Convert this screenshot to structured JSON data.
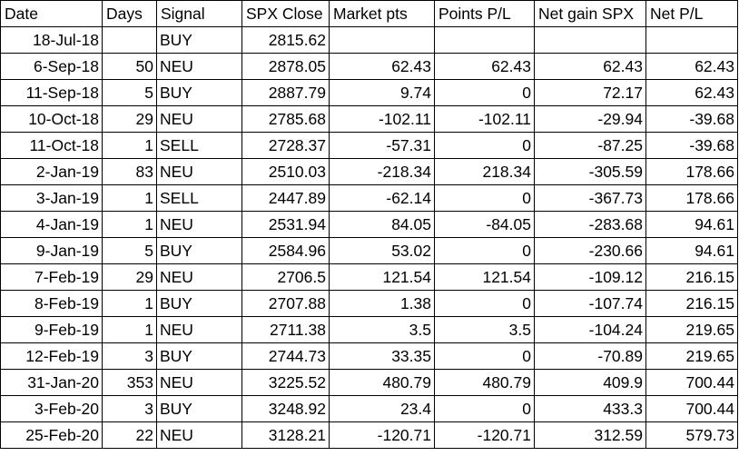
{
  "columns": [
    "Date",
    "Days",
    "Signal",
    "SPX Close",
    "Market pts",
    "Points P/L",
    "Net gain SPX",
    "Net P/L"
  ],
  "rows": [
    [
      "18-Jul-18",
      "",
      "BUY",
      "2815.62",
      "",
      "",
      "",
      ""
    ],
    [
      "6-Sep-18",
      "50",
      "NEU",
      "2878.05",
      "62.43",
      "62.43",
      "62.43",
      "62.43"
    ],
    [
      "11-Sep-18",
      "5",
      "BUY",
      "2887.79",
      "9.74",
      "0",
      "72.17",
      "62.43"
    ],
    [
      "10-Oct-18",
      "29",
      "NEU",
      "2785.68",
      "-102.11",
      "-102.11",
      "-29.94",
      "-39.68"
    ],
    [
      "11-Oct-18",
      "1",
      "SELL",
      "2728.37",
      "-57.31",
      "0",
      "-87.25",
      "-39.68"
    ],
    [
      "2-Jan-19",
      "83",
      "NEU",
      "2510.03",
      "-218.34",
      "218.34",
      "-305.59",
      "178.66"
    ],
    [
      "3-Jan-19",
      "1",
      "SELL",
      "2447.89",
      "-62.14",
      "0",
      "-367.73",
      "178.66"
    ],
    [
      "4-Jan-19",
      "1",
      "NEU",
      "2531.94",
      "84.05",
      "-84.05",
      "-283.68",
      "94.61"
    ],
    [
      "9-Jan-19",
      "5",
      "BUY",
      "2584.96",
      "53.02",
      "0",
      "-230.66",
      "94.61"
    ],
    [
      "7-Feb-19",
      "29",
      "NEU",
      "2706.5",
      "121.54",
      "121.54",
      "-109.12",
      "216.15"
    ],
    [
      "8-Feb-19",
      "1",
      "BUY",
      "2707.88",
      "1.38",
      "0",
      "-107.74",
      "216.15"
    ],
    [
      "9-Feb-19",
      "1",
      "NEU",
      "2711.38",
      "3.5",
      "3.5",
      "-104.24",
      "219.65"
    ],
    [
      "12-Feb-19",
      "3",
      "BUY",
      "2744.73",
      "33.35",
      "0",
      "-70.89",
      "219.65"
    ],
    [
      "31-Jan-20",
      "353",
      "NEU",
      "3225.52",
      "480.79",
      "480.79",
      "409.9",
      "700.44"
    ],
    [
      "3-Feb-20",
      "3",
      "BUY",
      "3248.92",
      "23.4",
      "0",
      "433.3",
      "700.44"
    ],
    [
      "25-Feb-20",
      "22",
      "NEU",
      "3128.21",
      "-120.71",
      "-120.71",
      "312.59",
      "579.73"
    ]
  ]
}
